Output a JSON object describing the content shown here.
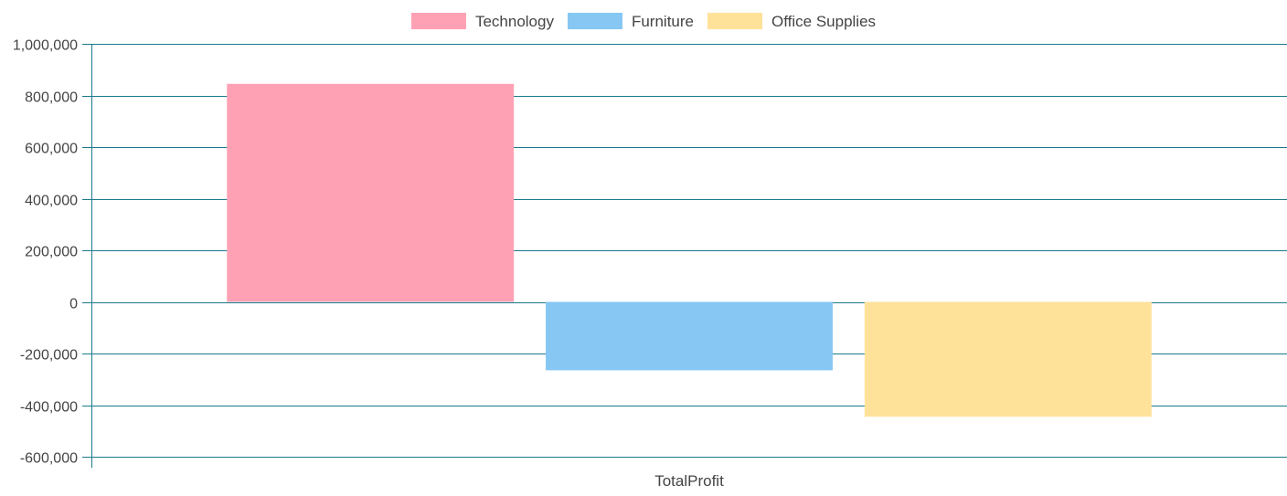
{
  "chart_data": {
    "type": "bar",
    "categories": [
      "TotalProfit"
    ],
    "series": [
      {
        "name": "Technology",
        "values": [
          845000
        ],
        "color": "#ffa1b5"
      },
      {
        "name": "Furniture",
        "values": [
          -265000
        ],
        "color": "#86c7f3"
      },
      {
        "name": "Office Supplies",
        "values": [
          -445000
        ],
        "color": "#ffe29a"
      }
    ],
    "ylim": [
      -600000,
      1000000
    ],
    "yticks": [
      1000000,
      800000,
      600000,
      400000,
      200000,
      0,
      -200000,
      -400000,
      -600000
    ],
    "ytick_labels": [
      "1,000,000",
      "800,000",
      "600,000",
      "400,000",
      "200,000",
      "0",
      "-200,000",
      "-400,000",
      "-600,000"
    ],
    "grid": true,
    "grid_color": "#1a7a8c",
    "legend_position": "top-center"
  }
}
